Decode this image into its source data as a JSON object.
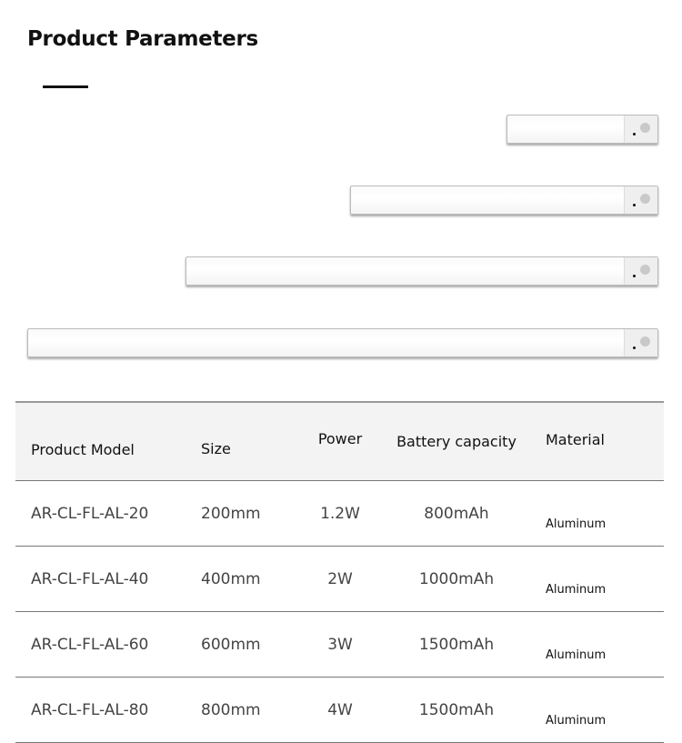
{
  "title": "Product Parameters",
  "table": {
    "headers": [
      "Product Model",
      "Size",
      "Power",
      "Battery capacity",
      "Material"
    ],
    "rows": [
      [
        "AR-CL-FL-AL-20",
        "200mm",
        "1.2W",
        "800mAh",
        "Aluminum"
      ],
      [
        "AR-CL-FL-AL-40",
        "400mm",
        "2W",
        "1000mAh",
        "Aluminum"
      ],
      [
        "AR-CL-FL-AL-60",
        "600mm",
        "3W",
        "1500mAh",
        "Aluminum"
      ],
      [
        "AR-CL-FL-AL-80",
        "800mm",
        "4W",
        "1500mAh",
        "Aluminum"
      ]
    ]
  }
}
